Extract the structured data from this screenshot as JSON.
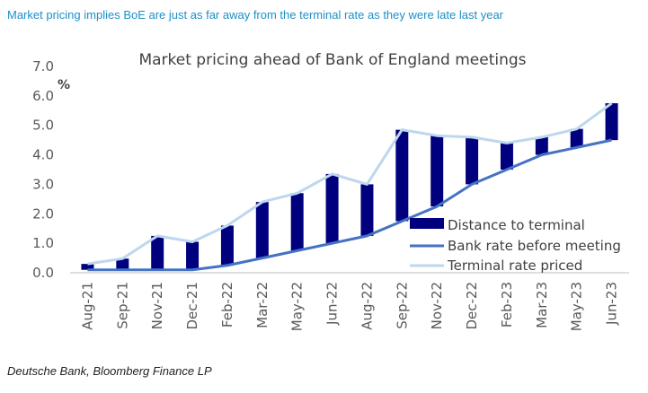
{
  "header": {
    "headline": "Market pricing implies BoE are just as far away from the terminal rate as they were late last year"
  },
  "footer": {
    "source": "Deutsche Bank, Bloomberg Finance LP"
  },
  "colors": {
    "distance": "#00007f",
    "bank_rate": "#4472c4",
    "terminal": "#bdd7ee",
    "axis": "#bfbfbf"
  },
  "chart_data": {
    "type": "bar",
    "title": "Market pricing ahead of Bank of England meetings",
    "ylabel": "%",
    "ylim": [
      0,
      7
    ],
    "yticks": [
      "0.0",
      "1.0",
      "2.0",
      "3.0",
      "4.0",
      "5.0",
      "6.0",
      "7.0"
    ],
    "categories": [
      "Aug-21",
      "Sep-21",
      "Nov-21",
      "Dec-21",
      "Feb-22",
      "Mar-22",
      "May-22",
      "Jun-22",
      "Aug-22",
      "Sep-22",
      "Nov-22",
      "Dec-22",
      "Feb-23",
      "Mar-23",
      "May-23",
      "Jun-23"
    ],
    "legend_position": "bottom-right",
    "series": [
      {
        "name": "Distance to terminal",
        "kind": "bar",
        "values": [
          0.2,
          0.38,
          1.15,
          0.95,
          1.35,
          1.9,
          1.95,
          2.35,
          1.75,
          3.1,
          2.4,
          1.6,
          0.9,
          0.6,
          0.63,
          1.25
        ]
      },
      {
        "name": "Bank rate before meeting",
        "kind": "line",
        "values": [
          0.1,
          0.1,
          0.1,
          0.1,
          0.25,
          0.5,
          0.75,
          1.0,
          1.25,
          1.75,
          2.25,
          3.0,
          3.5,
          4.0,
          4.25,
          4.5
        ]
      },
      {
        "name": "Terminal rate priced",
        "kind": "line",
        "values": [
          0.3,
          0.48,
          1.25,
          1.05,
          1.6,
          2.4,
          2.7,
          3.35,
          3.0,
          4.85,
          4.65,
          4.6,
          4.4,
          4.6,
          4.88,
          5.75
        ]
      }
    ]
  }
}
